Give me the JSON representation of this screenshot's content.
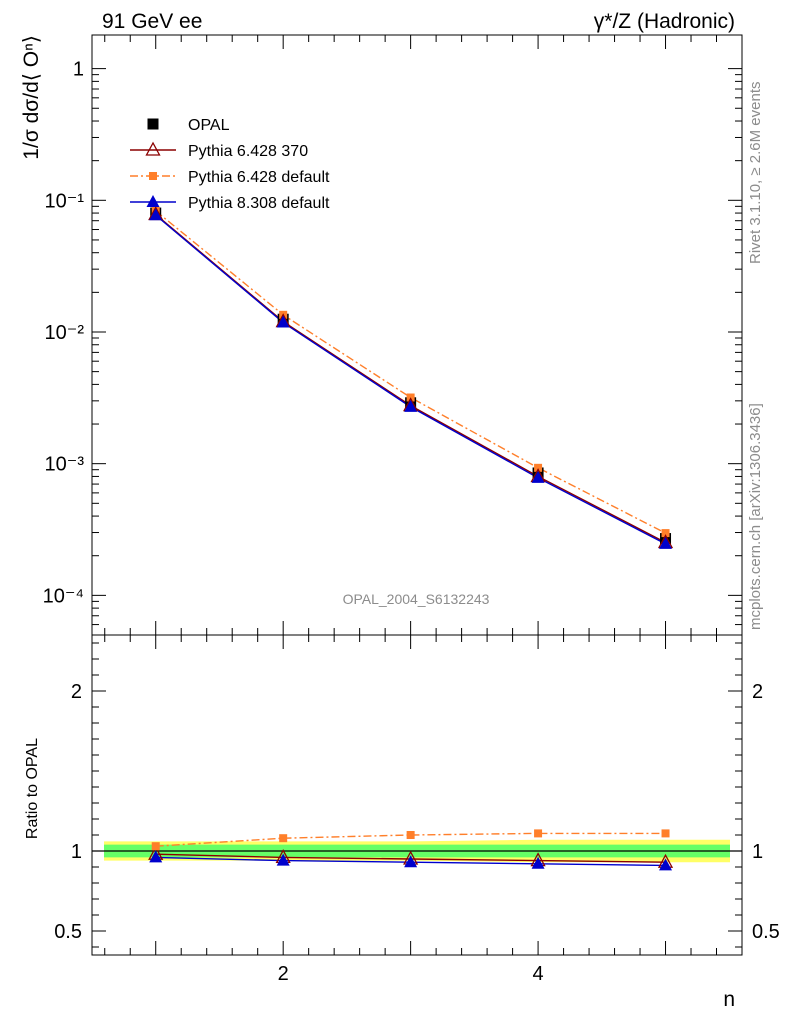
{
  "header": {
    "left": "91 GeV ee",
    "right": "γ*/Z (Hadronic)"
  },
  "side_labels": {
    "top": "Rivet 3.1.10, ≥ 2.6M events",
    "bottom": "mcplots.cern.ch [arXiv:1306.3436]"
  },
  "watermark": "OPAL_2004_S6132243",
  "colors": {
    "opal": "#000000",
    "py6_370": "#8b0000",
    "py6_default": "#ff7f2a",
    "py8_default": "#0000cc",
    "band_inner": "#66ff66",
    "band_outer": "#ffff66"
  },
  "chart_data": [
    {
      "type": "line",
      "panel": "main",
      "ylabel": "1/σ dσ/d⟨ Oⁿ⟩",
      "yscale": "log",
      "xlim": [
        0.5,
        5.6
      ],
      "ylim": [
        5e-05,
        1.8
      ],
      "x": [
        1,
        2,
        3,
        4,
        5
      ],
      "y_ticks": [
        {
          "value": 1,
          "label": "1"
        },
        {
          "value": 0.1,
          "label": "10⁻¹"
        },
        {
          "value": 0.01,
          "label": "10⁻²"
        },
        {
          "value": 0.001,
          "label": "10⁻³"
        },
        {
          "value": 0.0001,
          "label": "10⁻⁴"
        }
      ],
      "legend_position": "top-left",
      "series": [
        {
          "name": "OPAL",
          "marker": "square",
          "values": [
            0.08,
            0.0125,
            0.0029,
            0.00085,
            0.00027
          ]
        },
        {
          "name": "Pythia 6.428 370",
          "marker": "open-triangle",
          "values": [
            0.078,
            0.012,
            0.00276,
            0.0008,
            0.000252
          ]
        },
        {
          "name": "Pythia 6.428 default",
          "marker": "small-square",
          "values": [
            0.083,
            0.0135,
            0.00318,
            0.00093,
            0.000297
          ]
        },
        {
          "name": "Pythia 8.308 default",
          "marker": "filled-triangle",
          "values": [
            0.077,
            0.0118,
            0.0027,
            0.00078,
            0.000246
          ]
        }
      ]
    },
    {
      "type": "line",
      "panel": "ratio",
      "ylabel": "Ratio to OPAL",
      "xlabel": "n",
      "xlim": [
        0.5,
        5.6
      ],
      "ylim": [
        0.35,
        2.35
      ],
      "x": [
        1,
        2,
        3,
        4,
        5
      ],
      "x_ticks": [
        {
          "value": 2,
          "label": "2"
        },
        {
          "value": 4,
          "label": "4"
        }
      ],
      "y_ticks": [
        {
          "value": 0.5,
          "label": "0.5"
        },
        {
          "value": 1,
          "label": "1"
        },
        {
          "value": 2,
          "label": "2"
        }
      ],
      "band_inner": [
        0.04,
        0.04,
        0.04,
        0.04,
        0.04
      ],
      "band_outer": [
        0.06,
        0.06,
        0.06,
        0.07,
        0.07
      ],
      "series": [
        {
          "name": "Pythia 6.428 370",
          "values": [
            0.98,
            0.96,
            0.95,
            0.94,
            0.93
          ]
        },
        {
          "name": "Pythia 6.428 default",
          "values": [
            1.03,
            1.08,
            1.1,
            1.11,
            1.11
          ]
        },
        {
          "name": "Pythia 8.308 default",
          "values": [
            0.96,
            0.94,
            0.93,
            0.92,
            0.91
          ]
        }
      ]
    }
  ]
}
